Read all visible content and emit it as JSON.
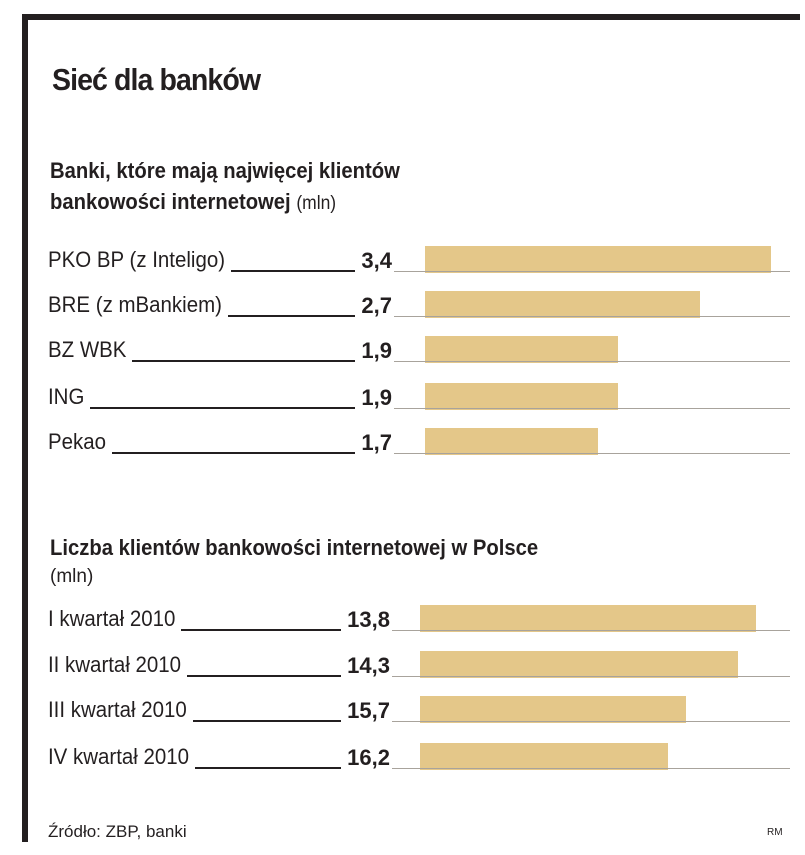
{
  "title": "Sieć dla banków",
  "chart_data": [
    {
      "type": "bar",
      "title": "Banki, które mają najwięcej klientów bankowości internetowej",
      "title_line1": "Banki, które mają najwięcej klientów",
      "title_line2": "bankowości internetowej",
      "unit": "(mln)",
      "categories": [
        "PKO BP (z Inteligo)",
        "BRE (z mBankiem)",
        "BZ WBK",
        "ING",
        "Pekao"
      ],
      "values": [
        3.4,
        2.7,
        1.9,
        1.9,
        1.7
      ],
      "value_labels": [
        "3,4",
        "2,7",
        "1,9",
        "1,9",
        "1,7"
      ],
      "orientation": "horizontal",
      "grid": false
    },
    {
      "type": "bar",
      "title": "Liczba klientów bankowości internetowej w Polsce",
      "unit": "(mln)",
      "categories": [
        "I kwartał 2010",
        "II kwartał 2010",
        "III kwartał 2010",
        "IV kwartał 2010"
      ],
      "values": [
        13.8,
        14.3,
        15.7,
        16.2
      ],
      "value_labels": [
        "13,8",
        "14,3",
        "15,7",
        "16,2"
      ],
      "orientation": "horizontal",
      "grid": false
    }
  ],
  "colors": {
    "bar": "#e4c789",
    "text": "#231f20",
    "frame": "#231f20"
  },
  "source": "Źródło: ZBP, banki",
  "credit": "RM"
}
